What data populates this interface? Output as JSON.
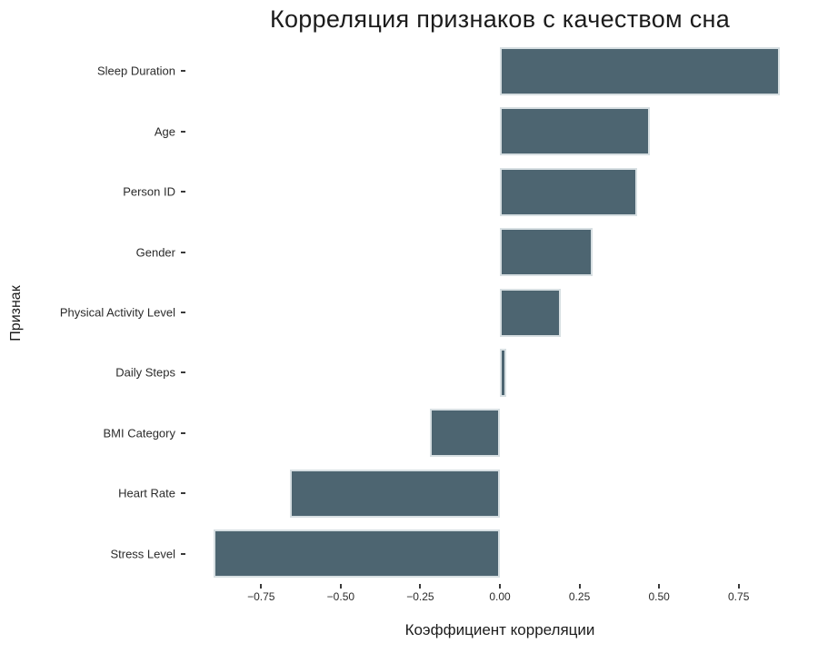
{
  "chart_data": {
    "type": "bar",
    "orientation": "horizontal",
    "title": "Корреляция признаков с качеством сна",
    "xlabel": "Коэффициент корреляции",
    "ylabel": "Признак",
    "categories": [
      "Sleep Duration",
      "Age",
      "Person ID",
      "Gender",
      "Physical Activity Level",
      "Daily Steps",
      "BMI Category",
      "Heart Rate",
      "Stress Level"
    ],
    "values": [
      0.88,
      0.47,
      0.43,
      0.29,
      0.19,
      0.02,
      -0.22,
      -0.66,
      -0.9
    ],
    "xlim": [
      -0.985,
      0.985
    ],
    "x_ticks": [
      -0.75,
      -0.5,
      -0.25,
      0.0,
      0.25,
      0.5,
      0.75
    ],
    "x_tick_labels": [
      "−0.75",
      "−0.50",
      "−0.25",
      "0.00",
      "0.25",
      "0.50",
      "0.75"
    ],
    "bar_color": "#4d6571",
    "bar_edge_color": "#d7dfe2",
    "grid": false,
    "legend": null,
    "background_color": "#ffffff"
  }
}
